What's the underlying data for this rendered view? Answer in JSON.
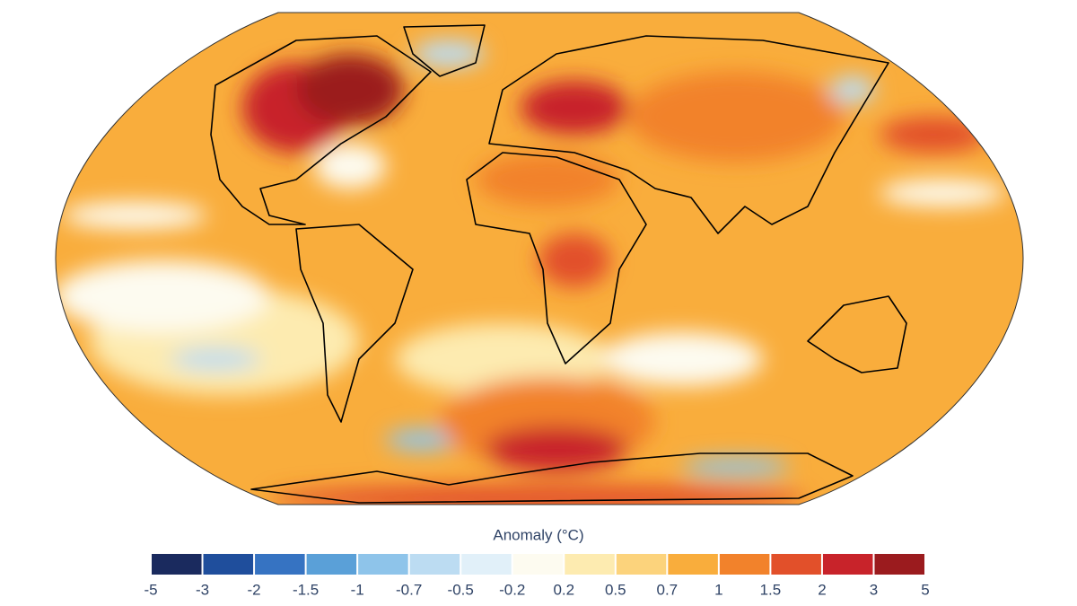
{
  "colorbar": {
    "title": "Anomaly (°C)",
    "ticks": [
      -5,
      -3,
      -2,
      -1.5,
      -1,
      -0.7,
      -0.5,
      -0.2,
      0.2,
      0.5,
      0.7,
      1,
      1.5,
      2,
      3,
      5
    ],
    "colors": [
      "#1a2a5e",
      "#1f4e9c",
      "#3673c2",
      "#5aa0d8",
      "#8ec4ea",
      "#bcdcf2",
      "#e1f0f9",
      "#fdfbf0",
      "#fdebb0",
      "#fcd37c",
      "#f9ad3c",
      "#f2822b",
      "#e2502a",
      "#c8232a",
      "#9b1b1e"
    ]
  }
}
